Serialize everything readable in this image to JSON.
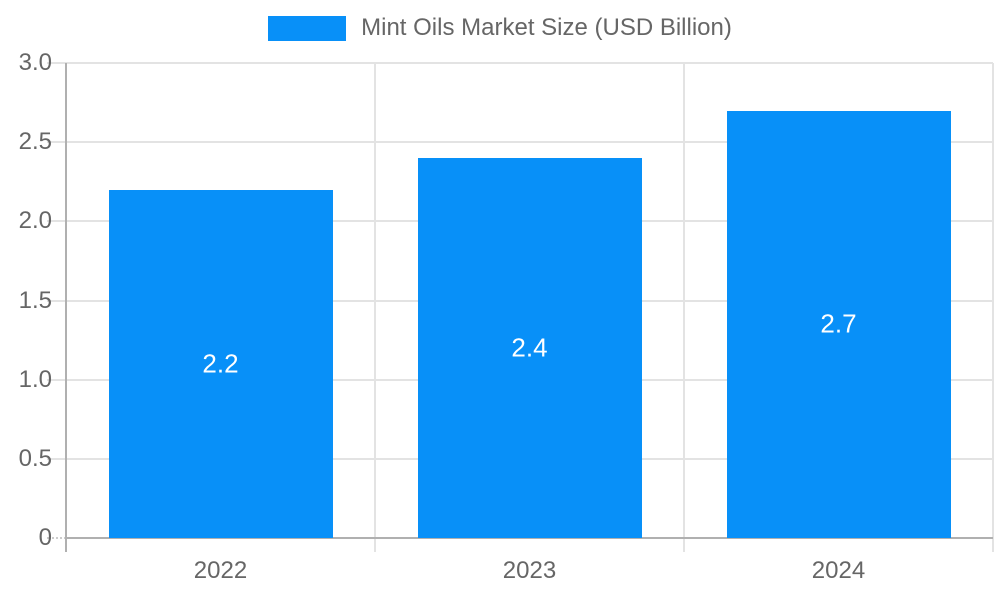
{
  "chart_data": {
    "type": "bar",
    "title": "Mint Oils Market Size (USD Billion)",
    "legend": {
      "position": "top",
      "entries": [
        {
          "label": "Mint Oils Market Size (USD Billion)",
          "color": "#0890F8"
        }
      ]
    },
    "categories": [
      "2022",
      "2023",
      "2024"
    ],
    "values": [
      2.2,
      2.4,
      2.7
    ],
    "value_labels": [
      "2.2",
      "2.4",
      "2.7"
    ],
    "series": [
      {
        "name": "Mint Oils Market Size (USD Billion)",
        "values": [
          2.2,
          2.4,
          2.7
        ]
      }
    ],
    "xlabel": "",
    "ylabel": "",
    "ylim": [
      0,
      3.0
    ],
    "ytick_step": 0.5,
    "ytick_labels": [
      "0",
      "0.5",
      "1.0",
      "1.5",
      "2.0",
      "2.5",
      "3.0"
    ],
    "grid": true,
    "colors": {
      "bar": "#0890F8",
      "bar_value_text": "#ffffff",
      "axis_text": "#666666",
      "gridline": "#e3e3e3",
      "axis_line": "#b0b0b0"
    }
  }
}
